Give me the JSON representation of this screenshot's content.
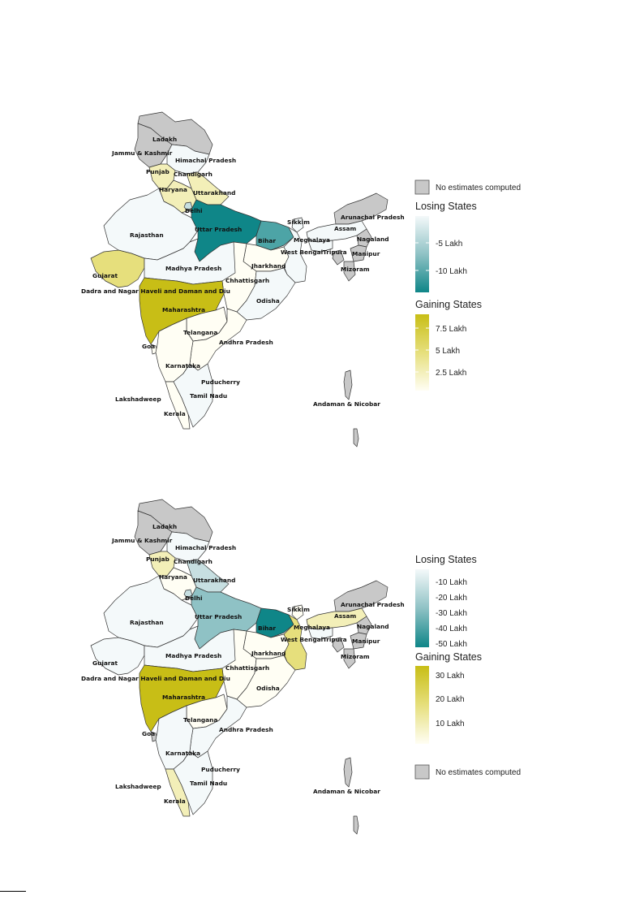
{
  "colors": {
    "no_data": "#c8c8c8",
    "losing_scale": [
      "#f4f9fa",
      "#c7dfe1",
      "#8fc2c5",
      "#4da4a6",
      "#0f8688"
    ],
    "gaining_scale": [
      "#fffef4",
      "#f3efb8",
      "#e6df7c",
      "#d8cd43",
      "#c8be16"
    ],
    "state_border": "#333333"
  },
  "map_1": {
    "legend": {
      "no_data_label": "No estimates computed",
      "losing_title": "Losing States",
      "losing_ticks": [
        "-5 Lakh",
        "-10 Lakh"
      ],
      "gaining_title": "Gaining States",
      "gaining_ticks": [
        "7.5 Lakh",
        "5 Lakh",
        "2.5 Lakh"
      ]
    }
  },
  "map_2": {
    "legend": {
      "losing_title": "Losing States",
      "losing_ticks": [
        "-10 Lakh",
        "-20 Lakh",
        "-30 Lakh",
        "-40 Lakh",
        "-50 Lakh"
      ],
      "gaining_title": "Gaining States",
      "gaining_ticks": [
        "30 Lakh",
        "20 Lakh",
        "10 Lakh"
      ],
      "no_data_label": "No estimates computed"
    }
  },
  "state_labels": {
    "ladakh": "Ladakh",
    "jammu_kashmir": "Jammu & Kashmir",
    "himachal": "Himachal Pradesh",
    "punjab": "Punjab",
    "chandigarh": "Chandigarh",
    "haryana": "Haryana",
    "uttarakhand": "Uttarakhand",
    "delhi": "Delhi",
    "rajasthan": "Rajasthan",
    "uttar_pradesh": "Uttar Pradesh",
    "bihar": "Bihar",
    "sikkim": "Sikkim",
    "arunachal": "Arunachal Pradesh",
    "assam": "Assam",
    "nagaland": "Nagaland",
    "meghalaya": "Meghalaya",
    "manipur": "Manipur",
    "tripura": "Tripura",
    "mizoram": "Mizoram",
    "west_bengal": "West Bengal",
    "jharkhand": "Jharkhand",
    "gujarat": "Gujarat",
    "madhya_pradesh": "Madhya Pradesh",
    "chhattisgarh": "Chhattisgarh",
    "dnhdd": "Dadra and Nagar Haveli and Daman and Diu",
    "odisha": "Odisha",
    "maharashtra": "Maharashtra",
    "telangana": "Telangana",
    "andhra": "Andhra Pradesh",
    "goa": "Goa",
    "karnataka": "Karnataka",
    "puducherry": "Puducherry",
    "tamil_nadu": "Tamil Nadu",
    "lakshadweep": "Lakshadweep",
    "kerala": "Kerala",
    "andaman": "Andaman & Nicobar"
  },
  "fills_map_1": {
    "ladakh": "no_data",
    "jammu_kashmir": "no_data",
    "himachal": "L0",
    "punjab": "G1",
    "haryana": "G1",
    "uttarakhand": "G1",
    "delhi": "L1",
    "rajasthan": "L0",
    "uttar_pradesh": "L4",
    "bihar": "L3",
    "sikkim": "L0",
    "arunachal": "no_data",
    "assam": "L0",
    "nagaland": "no_data",
    "meghalaya": "L0",
    "manipur": "no_data",
    "tripura": "no_data",
    "mizoram": "no_data",
    "west_bengal": "L0",
    "jharkhand": "G0",
    "gujarat": "G2",
    "madhya_pradesh": "L0",
    "chhattisgarh": "G0",
    "odisha": "L0",
    "maharashtra": "G4",
    "telangana": "G0",
    "andhra": "G0",
    "goa": "G0",
    "karnataka": "G0",
    "tamil_nadu": "L0",
    "kerala": "G0",
    "andaman": "no_data"
  },
  "fills_map_2": {
    "ladakh": "no_data",
    "jammu_kashmir": "no_data",
    "himachal": "L0",
    "punjab": "G1",
    "haryana": "G0",
    "uttarakhand": "L1",
    "delhi": "L1",
    "rajasthan": "L0",
    "uttar_pradesh": "L2",
    "bihar": "L4",
    "sikkim": "G0",
    "arunachal": "no_data",
    "assam": "G1",
    "nagaland": "no_data",
    "meghalaya": "L0",
    "manipur": "no_data",
    "tripura": "no_data",
    "mizoram": "no_data",
    "west_bengal": "G2",
    "jharkhand": "G0",
    "gujarat": "L0",
    "madhya_pradesh": "L0",
    "chhattisgarh": "G0",
    "odisha": "G0",
    "maharashtra": "G4",
    "telangana": "G0",
    "andhra": "L0",
    "goa": "no_data",
    "karnataka": "L0",
    "tamil_nadu": "L0",
    "kerala": "G1",
    "andaman": "no_data"
  }
}
